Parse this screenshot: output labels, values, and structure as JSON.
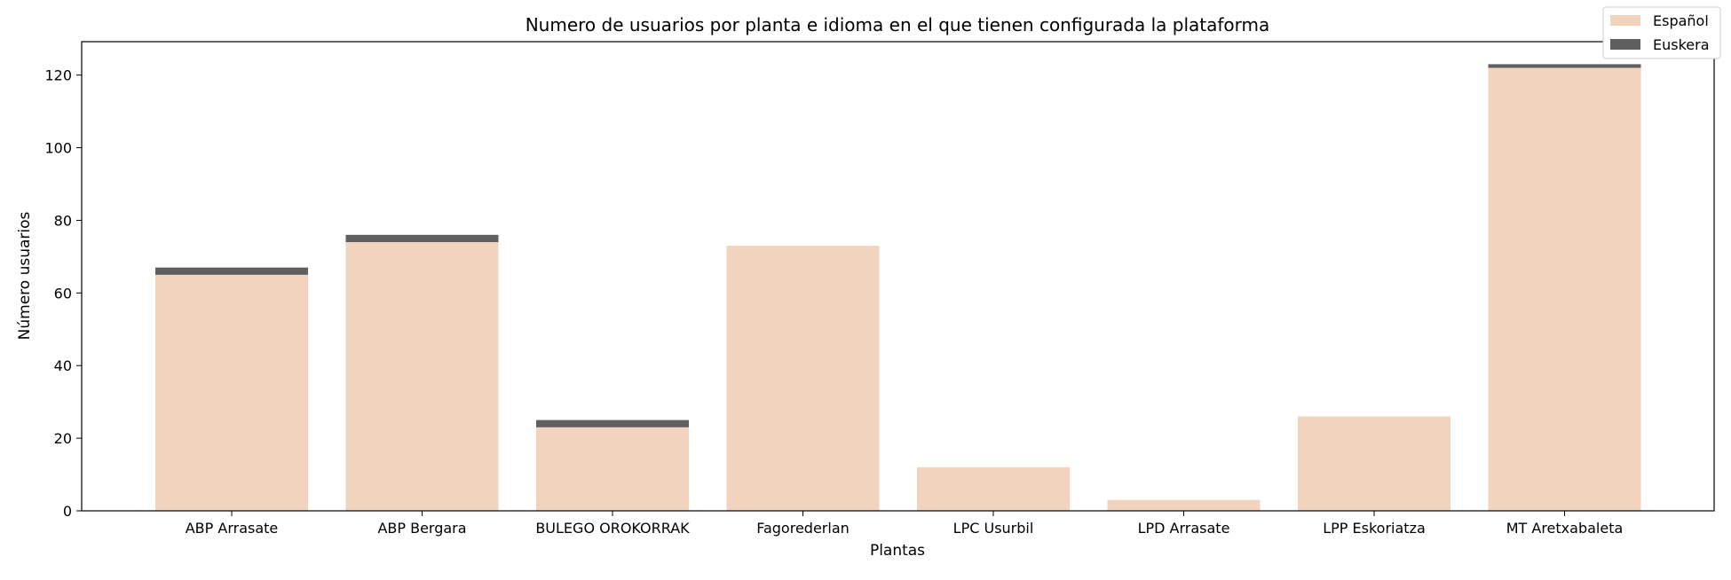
{
  "chart_data": {
    "type": "bar",
    "stacked": true,
    "title": "Numero de usuarios por planta e idioma en el que tienen configurada la plataforma",
    "xlabel": "Plantas",
    "ylabel": "Número usuarios",
    "categories": [
      "ABP Arrasate",
      "ABP Bergara",
      "BULEGO OROKORRAK",
      "Fagorederlan",
      "LPC Usurbil",
      "LPD Arrasate",
      "LPP Eskoriatza",
      "MT Aretxabaleta"
    ],
    "series": [
      {
        "name": "Español",
        "color": "#f2d3be",
        "values": [
          65,
          74,
          23,
          73,
          12,
          3,
          26,
          122
        ]
      },
      {
        "name": "Euskera",
        "color": "#5f5f5f",
        "values": [
          2,
          2,
          2,
          0,
          0,
          0,
          0,
          1
        ]
      }
    ],
    "ylim": [
      0,
      129.2
    ],
    "yticks": [
      0,
      20,
      40,
      60,
      80,
      100,
      120
    ],
    "grid": false,
    "legend_position": "top-right"
  }
}
